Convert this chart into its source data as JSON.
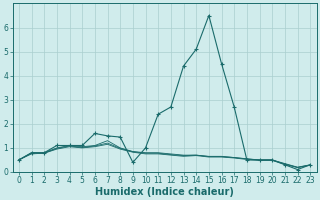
{
  "xlabel": "Humidex (Indice chaleur)",
  "bg_color": "#d0ecec",
  "grid_color": "#aacfcf",
  "line_color": "#1a6b6b",
  "marker_color": "#1a6b6b",
  "x_values": [
    0,
    1,
    2,
    3,
    4,
    5,
    6,
    7,
    8,
    9,
    10,
    11,
    12,
    13,
    14,
    15,
    16,
    17,
    18,
    19,
    20,
    21,
    22,
    23
  ],
  "lines": [
    [
      0.5,
      0.8,
      0.8,
      1.1,
      1.1,
      1.1,
      1.6,
      1.5,
      1.45,
      0.4,
      1.0,
      2.4,
      2.7,
      4.4,
      5.1,
      6.5,
      4.5,
      2.7,
      0.5,
      0.5,
      0.5,
      0.3,
      0.1,
      0.3
    ],
    [
      0.5,
      0.8,
      0.8,
      1.0,
      1.1,
      1.05,
      1.1,
      1.3,
      1.0,
      0.85,
      0.8,
      0.8,
      0.75,
      0.7,
      0.7,
      0.65,
      0.65,
      0.6,
      0.55,
      0.5,
      0.5,
      0.35,
      0.2,
      0.3
    ],
    [
      0.5,
      0.75,
      0.78,
      0.95,
      1.05,
      1.0,
      1.05,
      1.15,
      0.95,
      0.82,
      0.75,
      0.75,
      0.7,
      0.65,
      0.68,
      0.62,
      0.62,
      0.58,
      0.52,
      0.48,
      0.48,
      0.32,
      0.18,
      0.28
    ],
    [
      0.5,
      0.78,
      0.78,
      0.98,
      1.08,
      1.02,
      1.08,
      1.2,
      0.98,
      0.84,
      0.78,
      0.78,
      0.72,
      0.68,
      0.7,
      0.64,
      0.64,
      0.6,
      0.54,
      0.5,
      0.5,
      0.33,
      0.19,
      0.29
    ]
  ],
  "ylim": [
    0,
    7
  ],
  "xlim": [
    -0.5,
    23.5
  ],
  "yticks": [
    0,
    1,
    2,
    3,
    4,
    5,
    6
  ],
  "xticks": [
    0,
    1,
    2,
    3,
    4,
    5,
    6,
    7,
    8,
    9,
    10,
    11,
    12,
    13,
    14,
    15,
    16,
    17,
    18,
    19,
    20,
    21,
    22,
    23
  ],
  "tick_fontsize": 5.5,
  "label_fontsize": 7
}
